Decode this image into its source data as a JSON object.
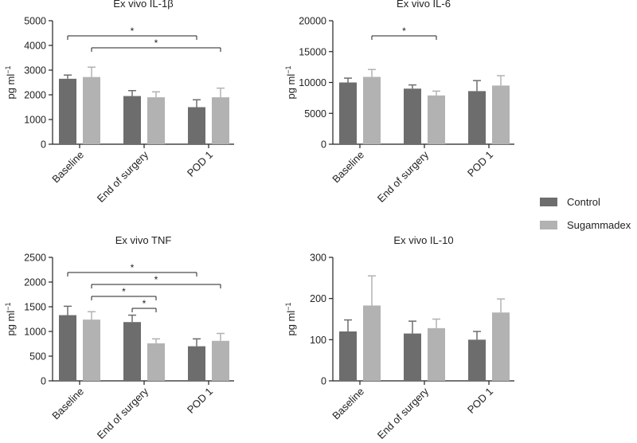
{
  "colors": {
    "control": "#6d6d6d",
    "sugammadex": "#b2b2b2",
    "axis": "#222222"
  },
  "legend": {
    "control_label": "Control",
    "sugammadex_label": "Sugammadex"
  },
  "chart_data": [
    {
      "type": "bar",
      "title": "Ex vivo IL-1β",
      "ylabel": "pg ml−1",
      "categories": [
        "Baseline",
        "End of surgery",
        "POD 1"
      ],
      "ylim": [
        0,
        5000
      ],
      "yticks": [
        0,
        1000,
        2000,
        3000,
        4000,
        5000
      ],
      "series": [
        {
          "name": "Control",
          "values": [
            2650,
            1950,
            1500
          ],
          "errors": [
            150,
            220,
            300
          ]
        },
        {
          "name": "Sugammadex",
          "values": [
            2720,
            1900,
            1900
          ],
          "errors": [
            400,
            220,
            370
          ]
        }
      ],
      "significance": [
        {
          "from": [
            0,
            0
          ],
          "to": [
            2,
            0
          ],
          "label": "*"
        },
        {
          "from": [
            0,
            1
          ],
          "to": [
            2,
            1
          ],
          "label": "*"
        }
      ]
    },
    {
      "type": "bar",
      "title": "Ex vivo IL-6",
      "ylabel": "pg ml−1",
      "categories": [
        "Baseline",
        "End of surgery",
        "POD 1"
      ],
      "ylim": [
        0,
        20000
      ],
      "yticks": [
        0,
        5000,
        10000,
        15000,
        20000
      ],
      "series": [
        {
          "name": "Control",
          "values": [
            10000,
            9000,
            8600
          ],
          "errors": [
            700,
            600,
            1700
          ]
        },
        {
          "name": "Sugammadex",
          "values": [
            10900,
            7900,
            9500
          ],
          "errors": [
            1200,
            700,
            1600
          ]
        }
      ],
      "significance": [
        {
          "from": [
            0,
            1
          ],
          "to": [
            1,
            1
          ],
          "label": "*"
        }
      ]
    },
    {
      "type": "bar",
      "title": "Ex vivo TNF",
      "ylabel": "pg ml−1",
      "categories": [
        "Baseline",
        "End of surgery",
        "POD 1"
      ],
      "ylim": [
        0,
        2500
      ],
      "yticks": [
        0,
        500,
        1000,
        1500,
        2000,
        2500
      ],
      "series": [
        {
          "name": "Control",
          "values": [
            1330,
            1190,
            700
          ],
          "errors": [
            180,
            140,
            150
          ]
        },
        {
          "name": "Sugammadex",
          "values": [
            1240,
            760,
            810
          ],
          "errors": [
            160,
            90,
            150
          ]
        }
      ],
      "significance": [
        {
          "from": [
            0,
            0
          ],
          "to": [
            2,
            0
          ],
          "label": "*"
        },
        {
          "from": [
            0,
            1
          ],
          "to": [
            2,
            1
          ],
          "label": "*"
        },
        {
          "from": [
            0,
            1
          ],
          "to": [
            1,
            1
          ],
          "label": "*"
        },
        {
          "from": [
            1,
            0
          ],
          "to": [
            1,
            1
          ],
          "label": "*"
        }
      ]
    },
    {
      "type": "bar",
      "title": "Ex vivo IL-10",
      "ylabel": "pg ml−1",
      "categories": [
        "Baseline",
        "End of surgery",
        "POD 1"
      ],
      "ylim": [
        0,
        300
      ],
      "yticks": [
        0,
        100,
        200,
        300
      ],
      "series": [
        {
          "name": "Control",
          "values": [
            120,
            115,
            100
          ],
          "errors": [
            28,
            30,
            20
          ]
        },
        {
          "name": "Sugammadex",
          "values": [
            183,
            128,
            166
          ],
          "errors": [
            72,
            22,
            33
          ]
        }
      ],
      "significance": []
    }
  ]
}
